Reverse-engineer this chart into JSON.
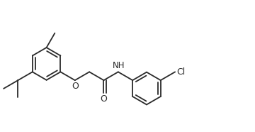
{
  "bg_color": "#ffffff",
  "line_color": "#2a2a2a",
  "text_color": "#2a2a2a",
  "lw": 1.3,
  "font_size": 8.5,
  "figsize": [
    3.6,
    1.86
  ],
  "dpi": 100,
  "xlim": [
    0.0,
    5.8
  ],
  "ylim": [
    -0.6,
    2.2
  ]
}
